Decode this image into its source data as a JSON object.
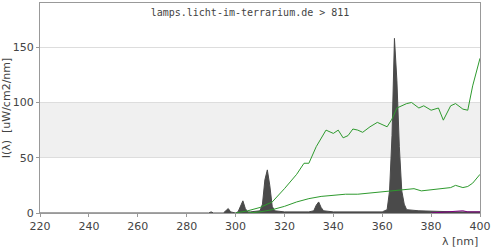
{
  "chart_data": {
    "type": "line",
    "title": "lamps.licht-im-terrarium.de > 811",
    "x_label": "λ [nm]",
    "y_label": "I(λ)  [uW/cm2/nm]",
    "xlim": [
      220,
      400
    ],
    "xticks": [
      220,
      240,
      260,
      280,
      300,
      320,
      340,
      360,
      380,
      400
    ],
    "ylim": [
      0,
      190
    ],
    "yticks": [
      0,
      50,
      100,
      150
    ],
    "grid": true,
    "series": [
      {
        "type": "area",
        "color": "#4a4a4a",
        "x": [
          220,
          285,
          289,
          290,
          291,
          295,
          296,
          297,
          298,
          300,
          301,
          302,
          303,
          304,
          305,
          306,
          310,
          311,
          312,
          313,
          314,
          315,
          316,
          320,
          330,
          332,
          333,
          334,
          335,
          336,
          340,
          360,
          362,
          363,
          364,
          365,
          366,
          367,
          368,
          369,
          370,
          375,
          385,
          390,
          400
        ],
        "values": [
          0,
          0,
          0,
          1,
          0,
          0,
          2,
          4,
          1,
          0,
          1,
          6,
          11,
          4,
          1,
          1,
          2,
          8,
          30,
          39,
          25,
          6,
          2,
          1,
          1,
          2,
          7,
          10,
          5,
          2,
          1,
          1,
          3,
          20,
          70,
          158,
          120,
          60,
          20,
          8,
          3,
          2,
          1,
          1,
          1
        ]
      },
      {
        "type": "line",
        "color": "#2e9a2e",
        "x": [
          300,
          305,
          310,
          315,
          320,
          325,
          328,
          330,
          333,
          335,
          337,
          340,
          342,
          344,
          346,
          348,
          350,
          352,
          355,
          358,
          360,
          362,
          364,
          366,
          370,
          372,
          375,
          377,
          380,
          383,
          385,
          388,
          390,
          393,
          395,
          397,
          400
        ],
        "values": [
          0,
          2,
          5,
          10,
          22,
          35,
          45,
          45,
          60,
          68,
          75,
          72,
          75,
          68,
          70,
          76,
          75,
          73,
          78,
          82,
          80,
          78,
          85,
          95,
          99,
          100,
          95,
          97,
          93,
          95,
          84,
          97,
          99,
          94,
          93,
          115,
          140
        ]
      },
      {
        "type": "line",
        "color": "#2e9a2e",
        "x": [
          305,
          310,
          315,
          320,
          325,
          330,
          335,
          340,
          345,
          350,
          355,
          360,
          365,
          370,
          373,
          376,
          380,
          385,
          388,
          390,
          393,
          395,
          397,
          400
        ],
        "values": [
          0,
          1,
          3,
          6,
          10,
          13,
          15,
          16,
          17,
          17,
          18,
          19,
          20,
          21,
          22,
          20,
          21,
          22,
          23,
          25,
          23,
          24,
          27,
          35
        ]
      },
      {
        "type": "line",
        "color": "#800080",
        "x": [
          380,
          385,
          390,
          393,
          395,
          398,
          400
        ],
        "values": [
          0,
          1,
          2,
          2,
          1,
          1,
          1
        ]
      }
    ]
  }
}
